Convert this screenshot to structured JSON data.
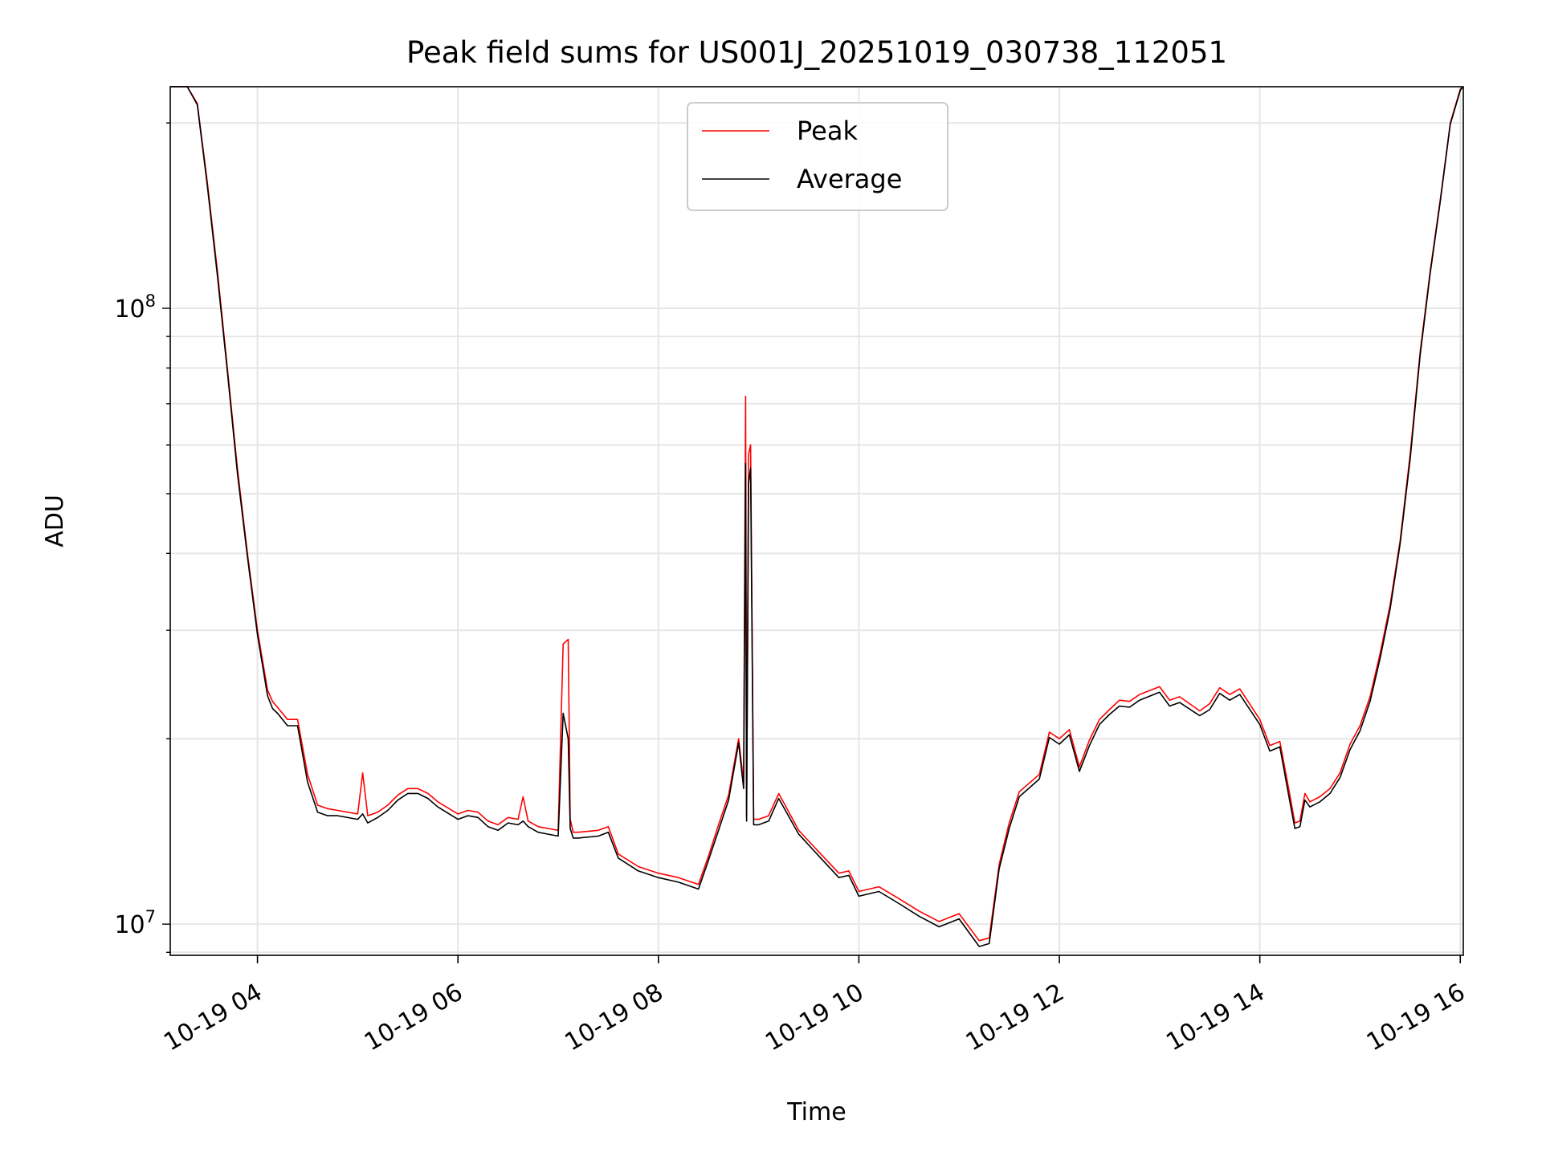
{
  "chart_data": {
    "type": "line",
    "title": "Peak field sums for US001J_20251019_030738_112051",
    "xlabel": "Time",
    "ylabel": "ADU",
    "yscale": "log",
    "xlim": [
      3.13,
      16.03
    ],
    "ylim": [
      8900000,
      229000000
    ],
    "grid": true,
    "legend_position": "top-center",
    "x_ticks": [
      {
        "x": 4,
        "label": "10-19 04"
      },
      {
        "x": 6,
        "label": "10-19 06"
      },
      {
        "x": 8,
        "label": "10-19 08"
      },
      {
        "x": 10,
        "label": "10-19 10"
      },
      {
        "x": 12,
        "label": "10-19 12"
      },
      {
        "x": 14,
        "label": "10-19 14"
      },
      {
        "x": 16,
        "label": "10-19 16"
      }
    ],
    "y_ticks": [
      {
        "y": 10000000,
        "base": "10",
        "exp": "7"
      },
      {
        "y": 100000000,
        "base": "10",
        "exp": "8"
      }
    ],
    "series": [
      {
        "name": "Peak",
        "color": "#ff0000",
        "x": [
          3.13,
          3.3,
          3.4,
          3.5,
          3.6,
          3.7,
          3.8,
          3.9,
          4.0,
          4.1,
          4.15,
          4.2,
          4.3,
          4.4,
          4.5,
          4.6,
          4.7,
          4.8,
          5.0,
          5.05,
          5.1,
          5.2,
          5.3,
          5.4,
          5.5,
          5.6,
          5.7,
          5.8,
          6.0,
          6.1,
          6.2,
          6.3,
          6.4,
          6.5,
          6.6,
          6.65,
          6.7,
          6.8,
          6.9,
          7.0,
          7.05,
          7.1,
          7.12,
          7.15,
          7.2,
          7.4,
          7.5,
          7.6,
          7.8,
          8.0,
          8.2,
          8.4,
          8.5,
          8.6,
          8.7,
          8.8,
          8.85,
          8.87,
          8.88,
          8.9,
          8.92,
          8.95,
          9.0,
          9.1,
          9.2,
          9.4,
          9.6,
          9.8,
          9.9,
          10.0,
          10.2,
          10.4,
          10.6,
          10.8,
          11.0,
          11.2,
          11.3,
          11.4,
          11.5,
          11.6,
          11.8,
          11.9,
          12.0,
          12.1,
          12.2,
          12.3,
          12.4,
          12.5,
          12.6,
          12.7,
          12.8,
          13.0,
          13.1,
          13.2,
          13.4,
          13.5,
          13.6,
          13.7,
          13.8,
          14.0,
          14.1,
          14.2,
          14.3,
          14.35,
          14.4,
          14.45,
          14.5,
          14.6,
          14.7,
          14.8,
          14.9,
          15.0,
          15.1,
          15.2,
          15.3,
          15.4,
          15.5,
          15.6,
          15.7,
          15.8,
          15.9,
          16.0,
          16.03
        ],
        "y": [
          229000000,
          229000000,
          215000000,
          160000000,
          115000000,
          80000000,
          55000000,
          40000000,
          30000000,
          24000000,
          23000000,
          22500000,
          21500000,
          21500000,
          17500000,
          15600000,
          15400000,
          15300000,
          15100000,
          17600000,
          15000000,
          15200000,
          15600000,
          16200000,
          16600000,
          16600000,
          16300000,
          15800000,
          15100000,
          15300000,
          15200000,
          14700000,
          14500000,
          14900000,
          14800000,
          16100000,
          14700000,
          14400000,
          14300000,
          14200000,
          28500000,
          29000000,
          14800000,
          14100000,
          14100000,
          14200000,
          14400000,
          13000000,
          12400000,
          12100000,
          11900000,
          11600000,
          12900000,
          14500000,
          16200000,
          20000000,
          17000000,
          72000000,
          15000000,
          58000000,
          60000000,
          14800000,
          14800000,
          15000000,
          16300000,
          14200000,
          13100000,
          12100000,
          12200000,
          11300000,
          11500000,
          11000000,
          10500000,
          10100000,
          10400000,
          9400000,
          9500000,
          12500000,
          14600000,
          16400000,
          17500000,
          20500000,
          20000000,
          20700000,
          18000000,
          19900000,
          21500000,
          22300000,
          23100000,
          23000000,
          23600000,
          24300000,
          23100000,
          23400000,
          22200000,
          22800000,
          24200000,
          23600000,
          24100000,
          21500000,
          19500000,
          19800000,
          16200000,
          14600000,
          14700000,
          16300000,
          15800000,
          16100000,
          16600000,
          17600000,
          19600000,
          21000000,
          23400000,
          27500000,
          33000000,
          42000000,
          58000000,
          85000000,
          115000000,
          150000000,
          200000000,
          227000000,
          229000000
        ]
      },
      {
        "name": "Average",
        "color": "#000000",
        "x": [
          3.13,
          3.3,
          3.4,
          3.5,
          3.6,
          3.7,
          3.8,
          3.9,
          4.0,
          4.1,
          4.15,
          4.2,
          4.3,
          4.4,
          4.5,
          4.6,
          4.7,
          4.8,
          5.0,
          5.05,
          5.1,
          5.2,
          5.3,
          5.4,
          5.5,
          5.6,
          5.7,
          5.8,
          6.0,
          6.1,
          6.2,
          6.3,
          6.4,
          6.5,
          6.6,
          6.65,
          6.7,
          6.8,
          6.9,
          7.0,
          7.05,
          7.1,
          7.12,
          7.15,
          7.2,
          7.4,
          7.5,
          7.6,
          7.8,
          8.0,
          8.2,
          8.4,
          8.5,
          8.6,
          8.7,
          8.8,
          8.85,
          8.87,
          8.88,
          8.9,
          8.92,
          8.95,
          9.0,
          9.1,
          9.2,
          9.4,
          9.6,
          9.8,
          9.9,
          10.0,
          10.2,
          10.4,
          10.6,
          10.8,
          11.0,
          11.2,
          11.3,
          11.4,
          11.5,
          11.6,
          11.8,
          11.9,
          12.0,
          12.1,
          12.2,
          12.3,
          12.4,
          12.5,
          12.6,
          12.7,
          12.8,
          13.0,
          13.1,
          13.2,
          13.4,
          13.5,
          13.6,
          13.7,
          13.8,
          14.0,
          14.1,
          14.2,
          14.3,
          14.35,
          14.4,
          14.45,
          14.5,
          14.6,
          14.7,
          14.8,
          14.9,
          15.0,
          15.1,
          15.2,
          15.3,
          15.4,
          15.5,
          15.6,
          15.7,
          15.8,
          15.9,
          16.0,
          16.03
        ],
        "y": [
          229000000,
          229000000,
          214000000,
          158000000,
          113000000,
          79000000,
          54000000,
          39500000,
          29500000,
          23500000,
          22400000,
          22000000,
          21000000,
          21000000,
          17000000,
          15200000,
          15000000,
          15000000,
          14800000,
          15100000,
          14600000,
          14900000,
          15300000,
          15900000,
          16300000,
          16300000,
          16000000,
          15500000,
          14800000,
          15000000,
          14900000,
          14400000,
          14200000,
          14600000,
          14500000,
          14700000,
          14400000,
          14100000,
          14000000,
          13900000,
          22000000,
          20000000,
          14300000,
          13800000,
          13800000,
          13900000,
          14100000,
          12800000,
          12200000,
          11900000,
          11700000,
          11400000,
          12700000,
          14200000,
          15900000,
          19700000,
          16600000,
          56000000,
          14700000,
          52000000,
          55000000,
          14500000,
          14500000,
          14700000,
          16000000,
          14000000,
          12900000,
          11900000,
          12000000,
          11100000,
          11300000,
          10800000,
          10300000,
          9900000,
          10200000,
          9200000,
          9300000,
          12300000,
          14300000,
          16100000,
          17200000,
          20100000,
          19600000,
          20300000,
          17700000,
          19500000,
          21100000,
          21900000,
          22600000,
          22500000,
          23100000,
          23800000,
          22600000,
          22900000,
          21800000,
          22300000,
          23700000,
          23100000,
          23600000,
          21100000,
          19100000,
          19400000,
          15800000,
          14300000,
          14400000,
          15900000,
          15500000,
          15800000,
          16300000,
          17300000,
          19200000,
          20600000,
          23000000,
          27000000,
          32500000,
          41500000,
          57000000,
          84000000,
          114000000,
          149000000,
          199000000,
          226000000,
          229000000
        ]
      }
    ]
  }
}
